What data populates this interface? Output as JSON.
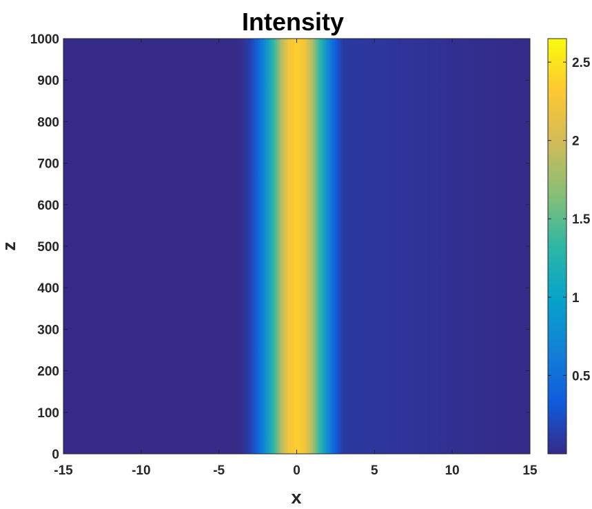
{
  "chart_data": {
    "type": "heatmap",
    "title": "Intensity",
    "xlabel": "x",
    "ylabel": "z",
    "xlim": [
      -15,
      15
    ],
    "ylim": [
      0,
      1000
    ],
    "x_ticks": [
      -15,
      -10,
      -5,
      0,
      5,
      10,
      15
    ],
    "y_ticks": [
      0,
      100,
      200,
      300,
      400,
      500,
      600,
      700,
      800,
      900,
      1000
    ],
    "colorbar": {
      "limits": [
        0,
        2.65
      ],
      "ticks": [
        0.5,
        1,
        1.5,
        2,
        2.5
      ],
      "colormap": "parula",
      "colormap_stops": [
        "#352a87",
        "#0f5cdd",
        "#1481d6",
        "#06a4ca",
        "#2eb7a4",
        "#87bf77",
        "#d1bb59",
        "#fec832",
        "#f9fb0e"
      ]
    },
    "field": {
      "description_values": "intensity profile across x, invariant along z",
      "x": [
        -15,
        -4,
        -3.5,
        -3,
        -2.5,
        -2,
        -1.5,
        -1,
        -0.5,
        0,
        0.5,
        1,
        1.5,
        2,
        2.5,
        3,
        15
      ],
      "intensity": [
        0,
        0,
        0.03,
        0.15,
        0.4,
        0.8,
        1.3,
        1.85,
        2.25,
        2.35,
        2.25,
        1.85,
        1.3,
        0.75,
        0.35,
        0.1,
        0
      ]
    },
    "grid": false
  }
}
